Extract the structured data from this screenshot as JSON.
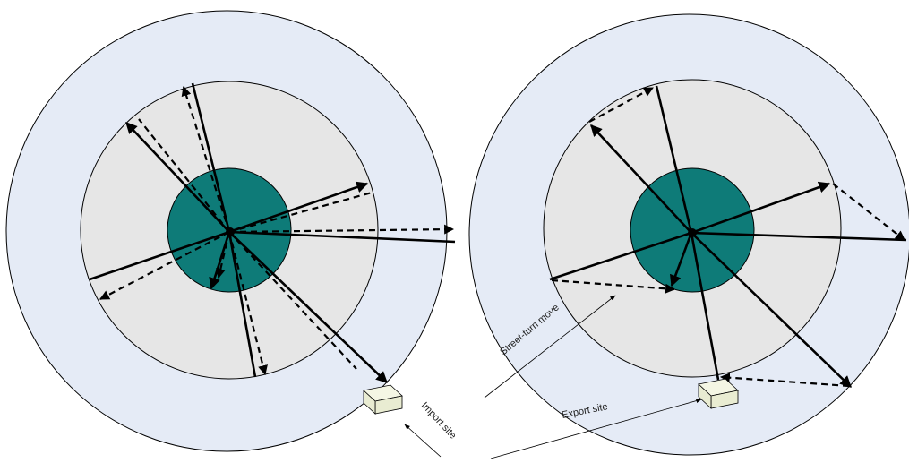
{
  "colors": {
    "outer_ring": "#e5ebf6",
    "middle_ring": "#e6e6e6",
    "core": "#0e7b78",
    "container_face": "#e9ecd2",
    "container_top": "#f4f6e4",
    "ink": "#000000"
  },
  "labels": {
    "street_turn": "Street-turn move",
    "import_site": "Import site",
    "export_site": "Export site"
  },
  "icons": {
    "site_box": "container-box-icon"
  }
}
